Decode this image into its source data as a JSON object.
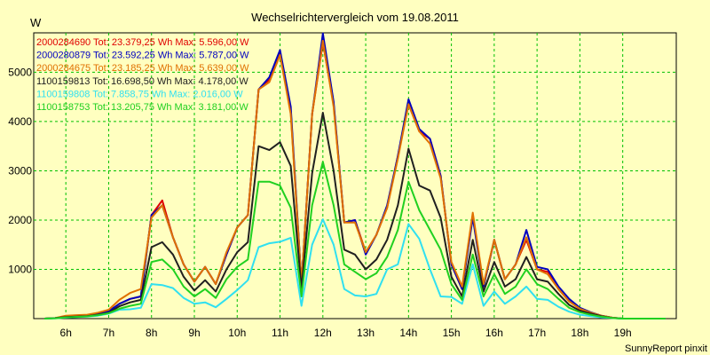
{
  "chart_data": {
    "type": "line",
    "title": "Wechselrichtervergleich vom 19.08.2011",
    "ylabel": "W",
    "xlabel": "",
    "credit": "SunnyReport pinxit",
    "ylim": [
      0,
      5800
    ],
    "xlim": [
      5.25,
      20.25
    ],
    "grid": true,
    "legend_position": "top-left",
    "yticks": [
      1000,
      2000,
      3000,
      4000,
      5000
    ],
    "xticks": [
      6,
      7,
      8,
      9,
      10,
      11,
      12,
      13,
      14,
      15,
      16,
      17,
      18,
      19
    ],
    "xtick_labels": [
      "6h",
      "7h",
      "8h",
      "9h",
      "10h",
      "11h",
      "12h",
      "13h",
      "14h",
      "15h",
      "16h",
      "17h",
      "18h",
      "19h"
    ],
    "x": [
      5.5,
      5.75,
      6,
      6.25,
      6.5,
      6.75,
      7,
      7.25,
      7.5,
      7.75,
      8,
      8.25,
      8.5,
      8.75,
      9,
      9.25,
      9.5,
      9.75,
      10,
      10.25,
      10.5,
      10.75,
      11,
      11.25,
      11.5,
      11.75,
      12,
      12.25,
      12.5,
      12.75,
      13,
      13.25,
      13.5,
      13.75,
      14,
      14.25,
      14.5,
      14.75,
      15,
      15.25,
      15.5,
      15.75,
      16,
      16.25,
      16.5,
      16.75,
      17,
      17.25,
      17.5,
      17.75,
      18,
      18.25,
      18.5,
      18.75,
      19,
      19.25,
      19.5,
      19.75,
      20
    ],
    "series": [
      {
        "name": "2000284690 Tot: 23.379,25 Wh Max: 5.596,00 W",
        "color": "#e00000",
        "values": [
          0,
          10,
          30,
          40,
          60,
          100,
          150,
          300,
          400,
          450,
          2100,
          2400,
          1650,
          1100,
          750,
          1050,
          700,
          1300,
          1850,
          2100,
          4650,
          4850,
          5400,
          4200,
          700,
          4150,
          5600,
          4350,
          1950,
          2000,
          1350,
          1700,
          2250,
          3300,
          4350,
          3800,
          3650,
          2900,
          1100,
          600,
          2100,
          650,
          1600,
          800,
          1100,
          1600,
          1000,
          950,
          600,
          350,
          200,
          120,
          60,
          20,
          0,
          0,
          0,
          0,
          0
        ]
      },
      {
        "name": "2000280879 Tot: 23.592,25 Wh Max: 5.787,00 W",
        "color": "#0000c0",
        "values": [
          0,
          10,
          30,
          40,
          60,
          100,
          150,
          300,
          400,
          450,
          2100,
          2300,
          1650,
          1100,
          750,
          1050,
          700,
          1300,
          1850,
          2100,
          4650,
          4900,
          5450,
          4300,
          700,
          4150,
          5790,
          4400,
          1950,
          2000,
          1300,
          1700,
          2300,
          3300,
          4450,
          3850,
          3650,
          2900,
          1100,
          600,
          2050,
          650,
          1600,
          800,
          1100,
          1800,
          1050,
          1000,
          650,
          400,
          220,
          130,
          60,
          20,
          0,
          0,
          0,
          0,
          0
        ]
      },
      {
        "name": "2000284675 Tot: 23.185,25 Wh Max: 5.639,00 W",
        "color": "#e07000",
        "values": [
          0,
          10,
          60,
          70,
          80,
          120,
          180,
          380,
          520,
          600,
          2050,
          2300,
          1650,
          1100,
          750,
          1050,
          700,
          1350,
          1850,
          2100,
          4650,
          4800,
          5350,
          4150,
          700,
          4150,
          5640,
          4300,
          1950,
          1950,
          1350,
          1700,
          2250,
          3250,
          4350,
          3800,
          3550,
          2850,
          1150,
          650,
          2150,
          700,
          1600,
          800,
          1100,
          1650,
          1000,
          900,
          600,
          350,
          200,
          120,
          60,
          20,
          0,
          0,
          0,
          0,
          0
        ]
      },
      {
        "name": "1100159813 Tot: 16.698,50 Wh Max: 4.178,00 W",
        "color": "#202020",
        "values": [
          0,
          10,
          30,
          40,
          50,
          80,
          120,
          250,
          330,
          380,
          1450,
          1550,
          1300,
          850,
          570,
          780,
          550,
          1000,
          1350,
          1550,
          3500,
          3420,
          3580,
          3100,
          600,
          2950,
          4178,
          3000,
          1400,
          1300,
          1000,
          1200,
          1600,
          2300,
          3450,
          2700,
          2600,
          2050,
          850,
          450,
          1600,
          550,
          1150,
          650,
          800,
          1250,
          800,
          750,
          500,
          280,
          160,
          100,
          50,
          15,
          0,
          0,
          0,
          0,
          0
        ]
      },
      {
        "name": "1100159808 Tot: 7.858,75 Wh Max: 2.016,00 W",
        "color": "#30e0f0",
        "values": [
          0,
          5,
          20,
          30,
          40,
          60,
          100,
          180,
          190,
          220,
          700,
          680,
          620,
          420,
          300,
          330,
          230,
          400,
          580,
          780,
          1450,
          1530,
          1560,
          1640,
          260,
          1500,
          2016,
          1500,
          600,
          470,
          450,
          500,
          1000,
          1100,
          1920,
          1620,
          1000,
          450,
          440,
          300,
          1100,
          260,
          550,
          300,
          450,
          650,
          400,
          380,
          240,
          140,
          80,
          50,
          25,
          10,
          0,
          0,
          0,
          0,
          0
        ]
      },
      {
        "name": "1100158753 Tot: 13.205,75 Wh Max: 3.181,00 W",
        "color": "#20d020",
        "values": [
          0,
          8,
          25,
          35,
          45,
          70,
          110,
          200,
          260,
          300,
          1150,
          1200,
          1000,
          650,
          450,
          600,
          420,
          800,
          1050,
          1200,
          2780,
          2780,
          2700,
          2250,
          450,
          2300,
          3181,
          2300,
          1100,
          950,
          800,
          920,
          1250,
          1800,
          2780,
          2200,
          1800,
          1400,
          700,
          380,
          1300,
          450,
          900,
          500,
          650,
          1000,
          700,
          600,
          400,
          220,
          130,
          80,
          40,
          12,
          0,
          0,
          0,
          0,
          0
        ]
      }
    ]
  }
}
